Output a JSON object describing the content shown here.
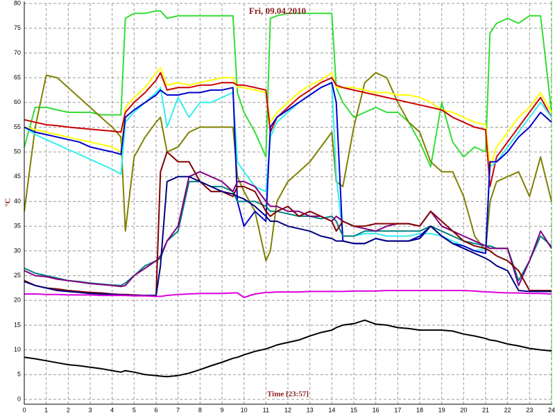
{
  "chart_data": {
    "type": "line",
    "title": "Fri, 09.04.2010",
    "x_label": "Time [23:57]",
    "y_label": "°C",
    "xlim": [
      0,
      24
    ],
    "ylim": [
      0,
      80
    ],
    "xticks": [
      0,
      1,
      2,
      3,
      4,
      5,
      6,
      7,
      8,
      9,
      10,
      11,
      12,
      13,
      14,
      15,
      16,
      17,
      18,
      19,
      20,
      21,
      22,
      23,
      24
    ],
    "yticks": [
      0,
      5,
      10,
      15,
      20,
      25,
      30,
      35,
      40,
      45,
      50,
      55,
      60,
      65,
      70,
      75,
      80
    ],
    "grid": true,
    "x": [
      0,
      0.5,
      1,
      1.5,
      2,
      2.5,
      3,
      3.5,
      4,
      4.4,
      4.6,
      5,
      5.5,
      6,
      6.2,
      6.5,
      7,
      7.5,
      8,
      8.5,
      9,
      9.5,
      9.7,
      10,
      10.5,
      11,
      11.2,
      11.5,
      12,
      12.5,
      13,
      13.5,
      14,
      14.2,
      14.5,
      15,
      15.5,
      16,
      16.5,
      17,
      17.5,
      18,
      18.5,
      19,
      19.5,
      20,
      20.5,
      21,
      21.2,
      21.5,
      22,
      22.5,
      23,
      23.5,
      24
    ],
    "series": [
      {
        "color": "#33dd33",
        "values": [
          51,
          59,
          59,
          58.5,
          58,
          58,
          58,
          57.5,
          57.5,
          57.5,
          77,
          78,
          78,
          78.5,
          78.5,
          77,
          77.5,
          77.5,
          77.5,
          77.5,
          77.5,
          77.5,
          62,
          58,
          54,
          49,
          77,
          77.5,
          78,
          78,
          78,
          78,
          78,
          63,
          60,
          57,
          58,
          59,
          58,
          58,
          56,
          52,
          47,
          60,
          52,
          49,
          51,
          50,
          74,
          76,
          77,
          76,
          77.5,
          77.5,
          58
        ]
      },
      {
        "color": "#808000",
        "values": [
          38,
          55,
          65.5,
          65,
          63,
          61,
          59,
          57,
          55,
          53,
          34,
          49,
          53,
          56,
          57,
          50,
          51,
          54,
          55,
          55,
          55,
          55,
          45,
          42,
          38,
          28,
          30,
          40,
          44,
          46,
          48,
          51,
          54,
          44,
          43,
          55,
          64,
          66,
          65,
          60,
          56,
          54,
          48,
          46,
          46,
          41,
          33,
          30,
          40,
          44,
          45,
          46,
          41,
          49,
          40
        ]
      },
      {
        "color": "#ffff00",
        "values": [
          55,
          54.5,
          54,
          53.5,
          53,
          52.5,
          52,
          51.5,
          51,
          50,
          59,
          61,
          63,
          66,
          67,
          63.5,
          64,
          63.5,
          64,
          64.5,
          65,
          65,
          63,
          63,
          62.5,
          62,
          56,
          58,
          60,
          62,
          63.5,
          64.5,
          66,
          63,
          63,
          63,
          62.5,
          62,
          62,
          61.5,
          61.5,
          61,
          60,
          58.5,
          58,
          57,
          56,
          55.5,
          47,
          51,
          54,
          57,
          59,
          62,
          58
        ]
      },
      {
        "color": "#cc0000",
        "values": [
          56.5,
          56,
          55.5,
          55.3,
          55,
          54.8,
          54.6,
          54.4,
          54.2,
          54,
          58,
          60,
          62,
          64.5,
          66,
          62.5,
          63,
          63,
          63.5,
          63.5,
          64,
          64,
          63.5,
          63.5,
          63,
          62.5,
          54,
          57,
          59,
          61,
          62.5,
          64,
          65,
          63.5,
          63,
          62.5,
          62,
          61.5,
          61,
          60.5,
          60,
          59.5,
          59,
          58.5,
          57,
          56,
          55,
          54.5,
          43,
          49,
          52,
          55,
          58,
          61,
          57
        ]
      },
      {
        "color": "#33eeee",
        "values": [
          55,
          53.5,
          52.5,
          51.5,
          50.5,
          49.5,
          48.5,
          47.5,
          46.5,
          45.5,
          56,
          58,
          60,
          62,
          63,
          55,
          61,
          57,
          60,
          60,
          61,
          62,
          48,
          46,
          43,
          42,
          53,
          56,
          58,
          60,
          61.5,
          63,
          64,
          45,
          33,
          33,
          33.5,
          33.5,
          33,
          33,
          33,
          33.5,
          33.5,
          33,
          32,
          31,
          30,
          30.5,
          47,
          48,
          51,
          54,
          57,
          60,
          57
        ]
      },
      {
        "color": "#0000cc",
        "values": [
          55,
          54,
          53.5,
          53,
          52.5,
          52,
          51,
          50.5,
          50,
          49.5,
          57,
          58.5,
          60,
          61.5,
          62.5,
          61.5,
          61.5,
          62,
          62,
          62.5,
          62.5,
          63,
          40,
          35,
          38,
          36,
          55,
          57,
          58.5,
          60,
          61.5,
          63,
          64,
          60,
          32,
          31.5,
          31.5,
          32.5,
          32,
          32,
          32,
          33,
          35,
          33,
          31.5,
          31,
          30,
          29.5,
          48,
          48,
          50,
          53,
          55,
          58,
          56
        ]
      },
      {
        "color": "#008080",
        "values": [
          26.5,
          25.5,
          25,
          24.5,
          24,
          23.8,
          23.5,
          23.3,
          23.1,
          23,
          23.5,
          25,
          27,
          28,
          28.5,
          32,
          34,
          44,
          44,
          43,
          43,
          42,
          40,
          40,
          40,
          39,
          38,
          38,
          37.5,
          37,
          37,
          36.5,
          37,
          36,
          33,
          33,
          34,
          34,
          34,
          34,
          34,
          34,
          35,
          34,
          33,
          32,
          31.5,
          31,
          31,
          30.5,
          30.5,
          24,
          28,
          33,
          31
        ]
      },
      {
        "color": "#800080",
        "values": [
          26,
          25,
          24.8,
          24.3,
          24,
          23.7,
          23.4,
          23.2,
          23,
          22.8,
          23,
          25,
          26.5,
          28,
          29,
          32,
          35,
          45,
          46,
          45,
          44,
          42,
          44,
          44,
          43,
          40,
          39,
          39,
          38,
          38,
          37,
          37,
          36,
          37,
          36,
          35,
          34.5,
          34,
          35,
          35.5,
          35.5,
          35,
          38,
          35,
          34,
          33,
          32,
          31,
          30.5,
          30.5,
          30.5,
          23,
          28,
          34,
          30.5
        ]
      },
      {
        "color": "#800000",
        "values": [
          24,
          23,
          22.5,
          22.3,
          22,
          21.8,
          21.6,
          21.5,
          21.3,
          21.2,
          21.2,
          21.1,
          21,
          21,
          46,
          50,
          48,
          48,
          44,
          42,
          42,
          41,
          43,
          43,
          42,
          38,
          37,
          38,
          39,
          37,
          38,
          37,
          36,
          34,
          36,
          35,
          35,
          35.5,
          35.5,
          35.5,
          35.5,
          35,
          38,
          36,
          34,
          32,
          31,
          30.5,
          30,
          29,
          28,
          26,
          22,
          22,
          22
        ]
      },
      {
        "color": "#000080",
        "values": [
          23.8,
          23,
          22.5,
          22,
          21.8,
          21.6,
          21.4,
          21.3,
          21.2,
          21.1,
          21.1,
          21,
          21,
          21,
          27,
          44,
          45,
          45,
          44,
          43,
          42,
          41.5,
          41,
          40.5,
          39,
          37,
          36,
          36,
          35,
          34.5,
          34,
          33,
          32.5,
          32,
          32,
          31.5,
          31.5,
          32.5,
          32,
          32,
          32,
          32.5,
          35,
          33,
          31.5,
          30.5,
          29.5,
          28.5,
          28,
          27,
          26,
          22,
          21.8,
          21.8,
          21.8
        ]
      },
      {
        "color": "#dd00dd",
        "values": [
          21.3,
          21.3,
          21.2,
          21.2,
          21.1,
          21.1,
          21.1,
          21,
          21,
          21,
          21,
          20.9,
          20.9,
          20.8,
          20.8,
          21,
          21.2,
          21.3,
          21.4,
          21.4,
          21.4,
          21.5,
          21.5,
          20.6,
          21.3,
          21.6,
          21.6,
          21.7,
          21.7,
          21.7,
          21.8,
          21.8,
          21.8,
          21.8,
          21.8,
          21.9,
          21.9,
          21.9,
          22,
          22,
          22,
          22,
          22,
          22,
          22,
          22,
          21.9,
          21.7,
          21.7,
          21.6,
          21.5,
          21.5,
          21.4,
          21.4,
          21.3
        ]
      },
      {
        "color": "#000000",
        "values": [
          8.5,
          8.2,
          7.8,
          7.4,
          7,
          6.8,
          6.5,
          6.2,
          5.8,
          5.5,
          5.8,
          5.5,
          5,
          4.8,
          4.7,
          4.6,
          4.8,
          5.3,
          6,
          6.8,
          7.5,
          8.3,
          8.5,
          9,
          9.7,
          10.2,
          10.5,
          11,
          11.5,
          12,
          12.8,
          13.5,
          14,
          14.5,
          15,
          15.3,
          16,
          15.2,
          15,
          14.5,
          14.3,
          14,
          14,
          14,
          13.8,
          13.2,
          12.8,
          12.3,
          12,
          11.8,
          11.2,
          10.8,
          10.3,
          10,
          9.8
        ]
      }
    ]
  }
}
